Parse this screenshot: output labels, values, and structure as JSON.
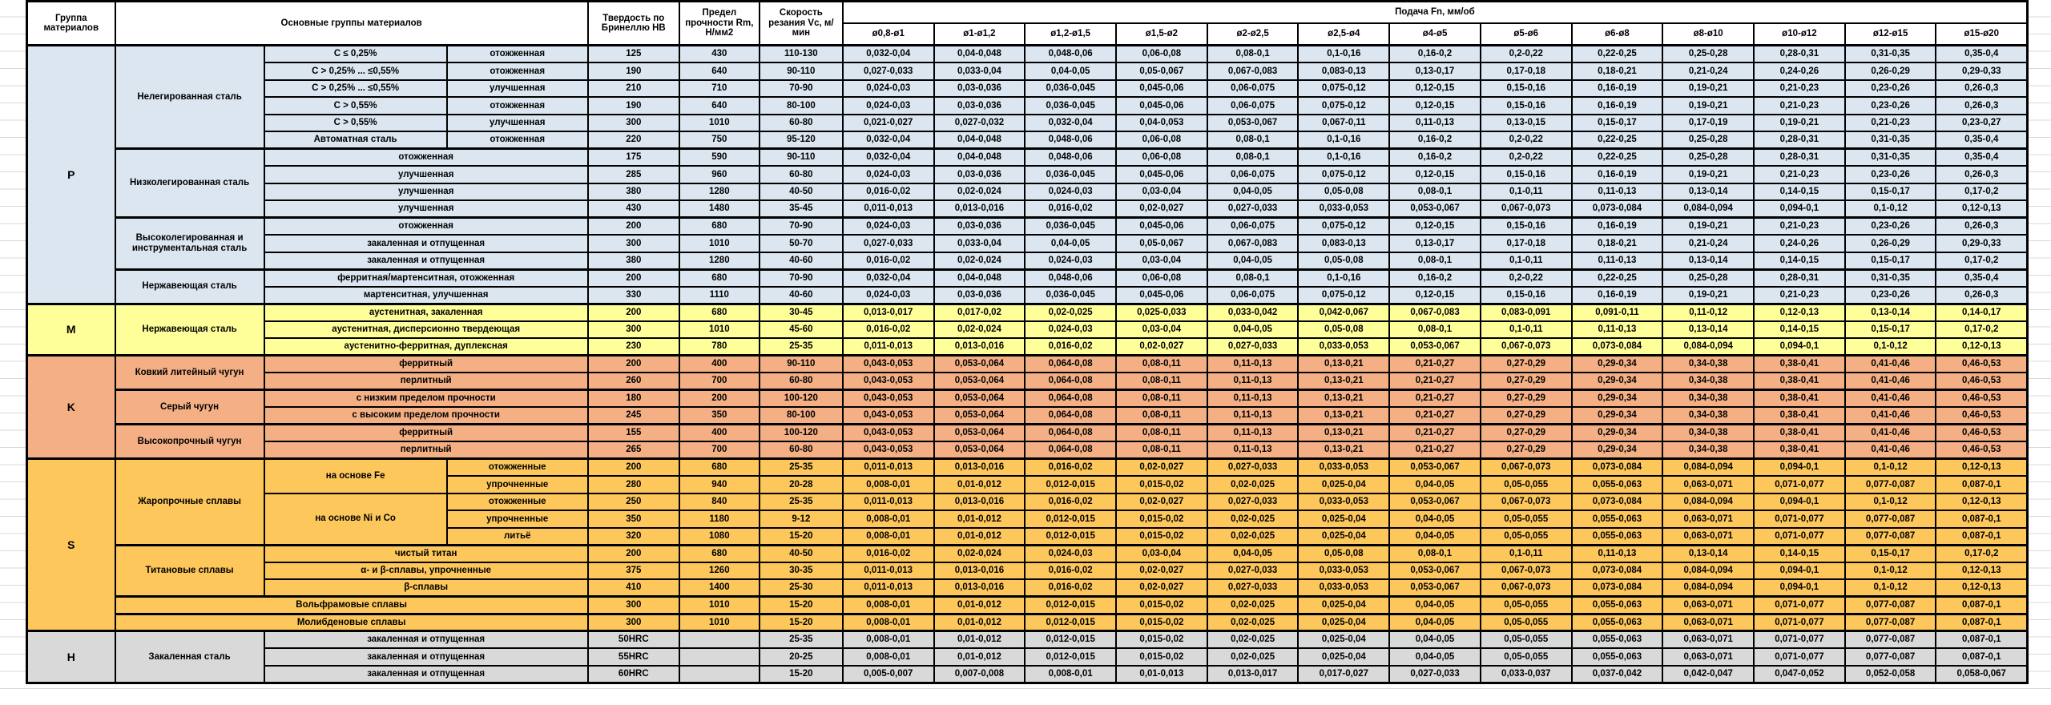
{
  "header": {
    "col_group": "Группа материалов",
    "col_materials": "Основные группы материалов",
    "col_hardness": "Твердость по Бринеллю HB",
    "col_strength": "Предел прочности Rm, Н/мм2",
    "col_speed": "Скорость резания Vc, м/мин",
    "feed_title": "Подача Fn, мм/об",
    "diameters": [
      "ø0,8-ø1",
      "ø1-ø1,2",
      "ø1,2-ø1,5",
      "ø1,5-ø2",
      "ø2-ø2,5",
      "ø2,5-ø4",
      "ø4-ø5",
      "ø5-ø6",
      "ø6-ø8",
      "ø8-ø10",
      "ø10-ø12",
      "ø12-ø15",
      "ø15-ø20"
    ]
  },
  "group_colors": {
    "P": "#DCE6F1",
    "M": "#FFFF99",
    "K": "#F4B084",
    "S": "#FDC75B",
    "H": "#D9D9D9"
  },
  "feed_patterns": {
    "A": [
      "0,032-0,04",
      "0,04-0,048",
      "0,048-0,06",
      "0,06-0,08",
      "0,08-0,1",
      "0,1-0,16",
      "0,16-0,2",
      "0,2-0,22",
      "0,22-0,25",
      "0,25-0,28",
      "0,28-0,31",
      "0,31-0,35",
      "0,35-0,4"
    ],
    "B": [
      "0,027-0,033",
      "0,033-0,04",
      "0,04-0,05",
      "0,05-0,067",
      "0,067-0,083",
      "0,083-0,13",
      "0,13-0,17",
      "0,17-0,18",
      "0,18-0,21",
      "0,21-0,24",
      "0,24-0,26",
      "0,26-0,29",
      "0,29-0,33"
    ],
    "C": [
      "0,024-0,03",
      "0,03-0,036",
      "0,036-0,045",
      "0,045-0,06",
      "0,06-0,075",
      "0,075-0,12",
      "0,12-0,15",
      "0,15-0,16",
      "0,16-0,19",
      "0,19-0,21",
      "0,21-0,23",
      "0,23-0,26",
      "0,26-0,3"
    ],
    "D": [
      "0,021-0,027",
      "0,027-0,032",
      "0,032-0,04",
      "0,04-0,053",
      "0,053-0,067",
      "0,067-0,11",
      "0,11-0,13",
      "0,13-0,15",
      "0,15-0,17",
      "0,17-0,19",
      "0,19-0,21",
      "0,21-0,23",
      "0,23-0,27"
    ],
    "E": [
      "0,016-0,02",
      "0,02-0,024",
      "0,024-0,03",
      "0,03-0,04",
      "0,04-0,05",
      "0,05-0,08",
      "0,08-0,1",
      "0,1-0,11",
      "0,11-0,13",
      "0,13-0,14",
      "0,14-0,15",
      "0,15-0,17",
      "0,17-0,2"
    ],
    "F": [
      "0,011-0,013",
      "0,013-0,016",
      "0,016-0,02",
      "0,02-0,027",
      "0,027-0,033",
      "0,033-0,053",
      "0,053-0,067",
      "0,067-0,073",
      "0,073-0,084",
      "0,084-0,094",
      "0,094-0,1",
      "0,1-0,12",
      "0,12-0,13"
    ],
    "G": [
      "0,013-0,017",
      "0,017-0,02",
      "0,02-0,025",
      "0,025-0,033",
      "0,033-0,042",
      "0,042-0,067",
      "0,067-0,083",
      "0,083-0,091",
      "0,091-0,11",
      "0,11-0,12",
      "0,12-0,13",
      "0,13-0,14",
      "0,14-0,17"
    ],
    "K": [
      "0,043-0,053",
      "0,053-0,064",
      "0,064-0,08",
      "0,08-0,11",
      "0,11-0,13",
      "0,13-0,21",
      "0,21-0,27",
      "0,27-0,29",
      "0,29-0,34",
      "0,34-0,38",
      "0,38-0,41",
      "0,41-0,46",
      "0,46-0,53"
    ],
    "H": [
      "0,008-0,01",
      "0,01-0,012",
      "0,012-0,015",
      "0,015-0,02",
      "0,02-0,025",
      "0,025-0,04",
      "0,04-0,05",
      "0,05-0,055",
      "0,055-0,063",
      "0,063-0,071",
      "0,071-0,077",
      "0,077-0,087",
      "0,087-0,1"
    ],
    "I": [
      "0,005-0,007",
      "0,007-0,008",
      "0,008-0,01",
      "0,01-0,013",
      "0,013-0,017",
      "0,017-0,027",
      "0,027-0,033",
      "0,033-0,037",
      "0,037-0,042",
      "0,042-0,047",
      "0,047-0,052",
      "0,052-0,058",
      "0,058-0,067"
    ]
  },
  "rows": [
    {
      "g": "P",
      "sec": 1,
      "group": {
        "label": "P",
        "span": 15
      },
      "family": {
        "label": "Нелегированная сталь",
        "span": 6
      },
      "sub": {
        "label": "C ≤ 0,25%"
      },
      "treat": {
        "label": "отожженная"
      },
      "hb": "125",
      "rm": "430",
      "vc": "110-130",
      "fp": "A"
    },
    {
      "g": "P",
      "sub": {
        "label": "C > 0,25% ... ≤0,55%"
      },
      "treat": {
        "label": "отожженная"
      },
      "hb": "190",
      "rm": "640",
      "vc": "90-110",
      "fp": "B"
    },
    {
      "g": "P",
      "sub": {
        "label": "C > 0,25% ... ≤0,55%"
      },
      "treat": {
        "label": "улучшенная"
      },
      "hb": "210",
      "rm": "710",
      "vc": "70-90",
      "fp": "C"
    },
    {
      "g": "P",
      "sub": {
        "label": "C > 0,55%"
      },
      "treat": {
        "label": "отожженная"
      },
      "hb": "190",
      "rm": "640",
      "vc": "80-100",
      "fp": "C"
    },
    {
      "g": "P",
      "sub": {
        "label": "C > 0,55%"
      },
      "treat": {
        "label": "улучшенная"
      },
      "hb": "300",
      "rm": "1010",
      "vc": "60-80",
      "fp": "D"
    },
    {
      "g": "P",
      "sub": {
        "label": "Автоматная сталь"
      },
      "treat": {
        "label": "отожженная"
      },
      "hb": "220",
      "rm": "750",
      "vc": "95-120",
      "fp": "A"
    },
    {
      "g": "P",
      "sec": 1,
      "family": {
        "label": "Низколегированная сталь",
        "span": 4
      },
      "treat": {
        "label": "отожженная",
        "colspan": 2
      },
      "hb": "175",
      "rm": "590",
      "vc": "90-110",
      "fp": "A"
    },
    {
      "g": "P",
      "treat": {
        "label": "улучшенная",
        "colspan": 2
      },
      "hb": "285",
      "rm": "960",
      "vc": "60-80",
      "fp": "C"
    },
    {
      "g": "P",
      "treat": {
        "label": "улучшенная",
        "colspan": 2
      },
      "hb": "380",
      "rm": "1280",
      "vc": "40-50",
      "fp": "E"
    },
    {
      "g": "P",
      "treat": {
        "label": "улучшенная",
        "colspan": 2
      },
      "hb": "430",
      "rm": "1480",
      "vc": "35-45",
      "fp": "F"
    },
    {
      "g": "P",
      "sec": 1,
      "family": {
        "label": "Высоколегированная и инструментальная сталь",
        "span": 3
      },
      "treat": {
        "label": "отожженная",
        "colspan": 2
      },
      "hb": "200",
      "rm": "680",
      "vc": "70-90",
      "fp": "C"
    },
    {
      "g": "P",
      "treat": {
        "label": "закаленная и отпущенная",
        "colspan": 2
      },
      "hb": "300",
      "rm": "1010",
      "vc": "50-70",
      "fp": "B"
    },
    {
      "g": "P",
      "treat": {
        "label": "закаленная и отпущенная",
        "colspan": 2
      },
      "hb": "380",
      "rm": "1280",
      "vc": "40-60",
      "fp": "E"
    },
    {
      "g": "P",
      "sec": 1,
      "family": {
        "label": "Нержавеющая сталь",
        "span": 2
      },
      "treat": {
        "label": "ферритная/мартенситная, отожженная",
        "colspan": 2
      },
      "hb": "200",
      "rm": "680",
      "vc": "70-90",
      "fp": "A"
    },
    {
      "g": "P",
      "treat": {
        "label": "мартенситная, улучшенная",
        "colspan": 2
      },
      "hb": "330",
      "rm": "1110",
      "vc": "40-60",
      "fp": "C"
    },
    {
      "g": "M",
      "sec": 1,
      "group": {
        "label": "M",
        "span": 3
      },
      "family": {
        "label": "Нержавеющая сталь",
        "span": 3
      },
      "treat": {
        "label": "аустенитная, закаленная",
        "colspan": 2
      },
      "hb": "200",
      "rm": "680",
      "vc": "30-45",
      "fp": "G"
    },
    {
      "g": "M",
      "treat": {
        "label": "аустенитная, дисперсионно твердеющая",
        "colspan": 2
      },
      "hb": "300",
      "rm": "1010",
      "vc": "45-60",
      "fp": "E"
    },
    {
      "g": "M",
      "treat": {
        "label": "аустенитно-ферритная, дуплексная",
        "colspan": 2
      },
      "hb": "230",
      "rm": "780",
      "vc": "25-35",
      "fp": "F"
    },
    {
      "g": "K",
      "sec": 1,
      "group": {
        "label": "K",
        "span": 6
      },
      "family": {
        "label": "Ковкий литейный чугун",
        "span": 2
      },
      "treat": {
        "label": "ферритный",
        "colspan": 2
      },
      "hb": "200",
      "rm": "400",
      "vc": "90-110",
      "fp": "K"
    },
    {
      "g": "K",
      "treat": {
        "label": "перлитный",
        "colspan": 2
      },
      "hb": "260",
      "rm": "700",
      "vc": "60-80",
      "fp": "K"
    },
    {
      "g": "K",
      "sec": 1,
      "family": {
        "label": "Серый чугун",
        "span": 2
      },
      "treat": {
        "label": "с низким пределом прочности",
        "colspan": 2
      },
      "hb": "180",
      "rm": "200",
      "vc": "100-120",
      "fp": "K"
    },
    {
      "g": "K",
      "treat": {
        "label": "с высоким пределом прочности",
        "colspan": 2
      },
      "hb": "245",
      "rm": "350",
      "vc": "80-100",
      "fp": "K"
    },
    {
      "g": "K",
      "sec": 1,
      "family": {
        "label": "Высокопрочный чугун",
        "span": 2
      },
      "treat": {
        "label": "ферритный",
        "colspan": 2
      },
      "hb": "155",
      "rm": "400",
      "vc": "100-120",
      "fp": "K"
    },
    {
      "g": "K",
      "treat": {
        "label": "перлитный",
        "colspan": 2
      },
      "hb": "265",
      "rm": "700",
      "vc": "60-80",
      "fp": "K"
    },
    {
      "g": "S",
      "sec": 1,
      "group": {
        "label": "S",
        "span": 10
      },
      "family": {
        "label": "Жаропрочные сплавы",
        "span": 5
      },
      "sub": {
        "label": "на основе Fe",
        "span": 2
      },
      "treat": {
        "label": "отожженные"
      },
      "hb": "200",
      "rm": "680",
      "vc": "25-35",
      "fp": "F"
    },
    {
      "g": "S",
      "treat": {
        "label": "упрочненные"
      },
      "hb": "280",
      "rm": "940",
      "vc": "20-28",
      "fp": "H"
    },
    {
      "g": "S",
      "sub": {
        "label": "на основе Ni и Co",
        "span": 3
      },
      "treat": {
        "label": "отожженные"
      },
      "hb": "250",
      "rm": "840",
      "vc": "25-35",
      "fp": "F"
    },
    {
      "g": "S",
      "treat": {
        "label": "упрочненные"
      },
      "hb": "350",
      "rm": "1180",
      "vc": "9-12",
      "fp": "H"
    },
    {
      "g": "S",
      "treat": {
        "label": "литьё"
      },
      "hb": "320",
      "rm": "1080",
      "vc": "15-20",
      "fp": "H"
    },
    {
      "g": "S",
      "sec": 1,
      "family": {
        "label": "Титановые сплавы",
        "span": 3
      },
      "treat": {
        "label": "чистый титан",
        "colspan": 2
      },
      "hb": "200",
      "rm": "680",
      "vc": "40-50",
      "fp": "E"
    },
    {
      "g": "S",
      "treat": {
        "label": "α- и β-сплавы, упрочненные",
        "colspan": 2
      },
      "hb": "375",
      "rm": "1260",
      "vc": "30-35",
      "fp": "F"
    },
    {
      "g": "S",
      "treat": {
        "label": "β-сплавы",
        "colspan": 2
      },
      "hb": "410",
      "rm": "1400",
      "vc": "25-30",
      "fp": "F"
    },
    {
      "g": "S",
      "sec": 1,
      "treat": {
        "label": "Вольфрамовые сплавы",
        "colspan": 3
      },
      "hb": "300",
      "rm": "1010",
      "vc": "15-20",
      "fp": "H"
    },
    {
      "g": "S",
      "sec": 1,
      "treat": {
        "label": "Молибденовые сплавы",
        "colspan": 3
      },
      "hb": "300",
      "rm": "1010",
      "vc": "15-20",
      "fp": "H"
    },
    {
      "g": "H",
      "sec": 1,
      "group": {
        "label": "H",
        "span": 3
      },
      "family": {
        "label": "Закаленная сталь",
        "span": 3
      },
      "treat": {
        "label": "закаленная и отпущенная",
        "colspan": 2
      },
      "hb": "50HRC",
      "rm": "",
      "vc": "25-35",
      "fp": "H"
    },
    {
      "g": "H",
      "treat": {
        "label": "закаленная и отпущенная",
        "colspan": 2
      },
      "hb": "55HRC",
      "rm": "",
      "vc": "20-25",
      "fp": "H"
    },
    {
      "g": "H",
      "treat": {
        "label": "закаленная и отпущенная",
        "colspan": 2
      },
      "hb": "60HRC",
      "rm": "",
      "vc": "15-20",
      "fp": "I"
    }
  ]
}
